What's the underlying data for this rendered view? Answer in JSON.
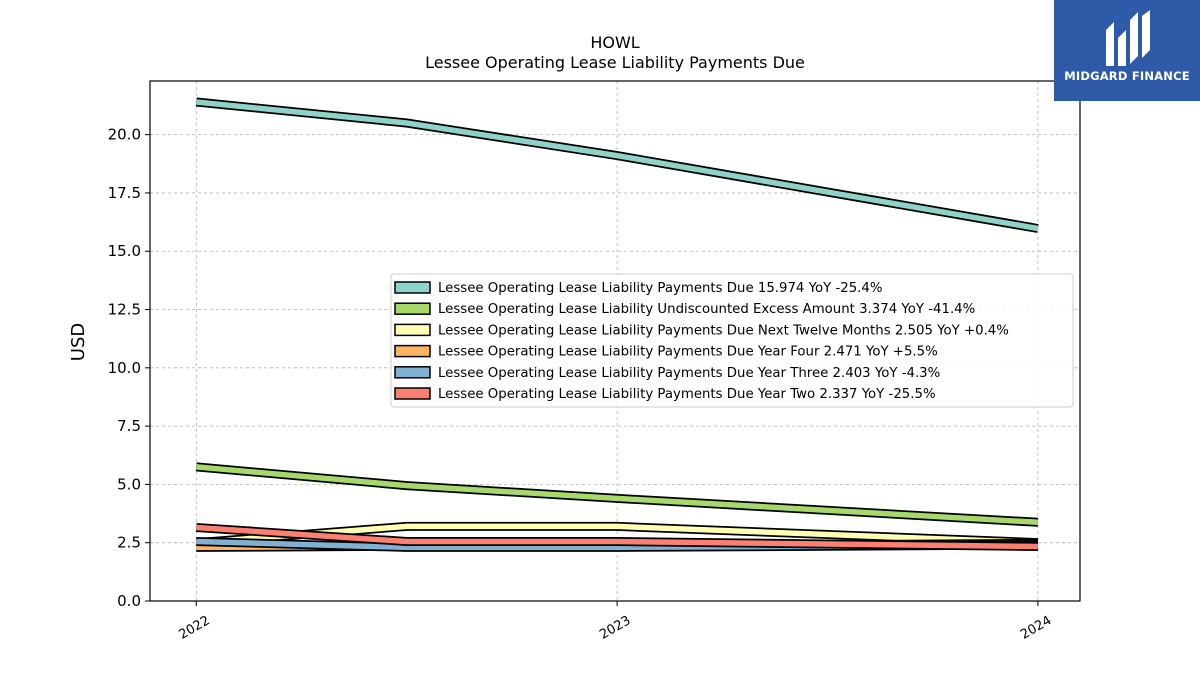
{
  "header": {
    "title": "HOWL",
    "subtitle": "Lessee Operating Lease Liability Payments Due"
  },
  "logo": {
    "text": "MIDGARD FINANCE",
    "icon": "midgard-logo-icon",
    "background": "#2f5aa8"
  },
  "chart_data": {
    "type": "area",
    "title": "HOWL",
    "subtitle": "Lessee Operating Lease Liability Payments Due",
    "xlabel": "",
    "ylabel": "USD",
    "x_ticks": [
      "2022",
      "2023",
      "2024"
    ],
    "x": [
      2022.0,
      2022.5,
      2023.0,
      2024.0
    ],
    "xlim": [
      2021.89,
      2024.1
    ],
    "ylim": [
      0,
      22.3
    ],
    "y_ticks": [
      "0.0",
      "2.5",
      "5.0",
      "7.5",
      "10.0",
      "12.5",
      "15.0",
      "17.5",
      "20.0"
    ],
    "y_tick_values": [
      0,
      2.5,
      5,
      7.5,
      10,
      12.5,
      15,
      17.5,
      20
    ],
    "grid": true,
    "legend_position": "center-right",
    "series": [
      {
        "name": "Lessee Operating Lease Liability Payments Due",
        "legend_label": "Lessee Operating Lease Liability Payments Due  15.974 YoY -25.4%",
        "color": "#8dd3c7",
        "values": [
          21.4,
          20.5,
          19.1,
          15.974
        ]
      },
      {
        "name": "Lessee Operating Lease Liability Undiscounted Excess Amount",
        "legend_label": "Lessee Operating Lease Liability Undiscounted Excess Amount  3.374 YoY -41.4%",
        "color": "#a6d96a",
        "values": [
          5.75,
          4.95,
          4.4,
          3.374
        ]
      },
      {
        "name": "Lessee Operating Lease Liability Payments Due Next Twelve Months",
        "legend_label": "Lessee Operating Lease Liability Payments Due Next Twelve Months  2.505 YoY +0.4%",
        "color": "#ffffb3",
        "values": [
          2.5,
          3.2,
          3.2,
          2.505
        ]
      },
      {
        "name": "Lessee Operating Lease Liability Payments Due Year Four",
        "legend_label": "Lessee Operating Lease Liability Payments Due Year Four  2.471 YoY +5.5%",
        "color": "#fdb462",
        "values": [
          2.3,
          2.35,
          2.35,
          2.471
        ]
      },
      {
        "name": "Lessee Operating Lease Liability Payments Due Year Three",
        "legend_label": "Lessee Operating Lease Liability Payments Due Year Three  2.403 YoY -4.3%",
        "color": "#80b1d3",
        "values": [
          2.55,
          2.3,
          2.3,
          2.403
        ]
      },
      {
        "name": "Lessee Operating Lease Liability Payments Due Year Two",
        "legend_label": "Lessee Operating Lease Liability Payments Due Year Two  2.337 YoY -25.5%",
        "color": "#fb8072",
        "values": [
          3.15,
          2.55,
          2.55,
          2.337
        ]
      }
    ]
  }
}
